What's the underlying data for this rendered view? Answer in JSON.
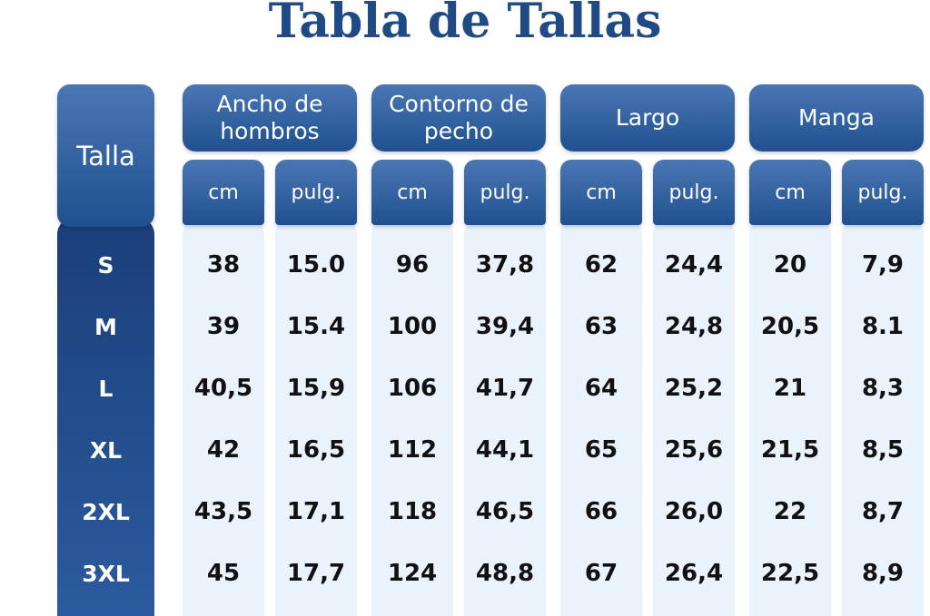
{
  "title": "Tabla de Tallas",
  "table": {
    "corner": "Talla",
    "groups": [
      "Ancho de hombros",
      "Contorno de pecho",
      "Largo",
      "Manga"
    ],
    "units": [
      "cm",
      "pulg.",
      "cm",
      "pulg.",
      "cm",
      "pulg.",
      "cm",
      "pulg."
    ],
    "rows": [
      {
        "label": "S",
        "cells": [
          "38",
          "15.0",
          "96",
          "37,8",
          "62",
          "24,4",
          "20",
          "7,9"
        ]
      },
      {
        "label": "M",
        "cells": [
          "39",
          "15.4",
          "100",
          "39,4",
          "63",
          "24,8",
          "20,5",
          "8.1"
        ]
      },
      {
        "label": "L",
        "cells": [
          "40,5",
          "15,9",
          "106",
          "41,7",
          "64",
          "25,2",
          "21",
          "8,3"
        ]
      },
      {
        "label": "XL",
        "cells": [
          "42",
          "16,5",
          "112",
          "44,1",
          "65",
          "25,6",
          "21,5",
          "8,5"
        ]
      },
      {
        "label": "2XL",
        "cells": [
          "43,5",
          "17,1",
          "118",
          "46,5",
          "66",
          "26,0",
          "22",
          "8,7"
        ]
      },
      {
        "label": "3XL",
        "cells": [
          "45",
          "17,7",
          "124",
          "48,8",
          "67",
          "26,4",
          "22,5",
          "8,9"
        ]
      }
    ]
  }
}
